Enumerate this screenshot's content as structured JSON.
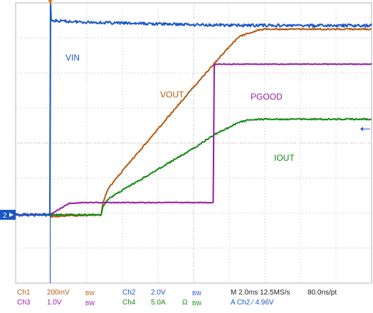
{
  "chart_data": {
    "type": "line",
    "title": "",
    "xlabel": "",
    "ylabel": "",
    "grid": true,
    "x_divisions": 10,
    "y_divisions": 8,
    "time_per_div_ms": 2.0,
    "series": [
      {
        "name": "VIN",
        "channel": "Ch2",
        "color": "#1a57c8",
        "x": [
          0,
          0.96,
          0.98,
          1.0,
          1.2,
          2.0,
          3.0,
          4.0,
          5.0,
          6.0,
          7.0,
          8.0,
          9.0,
          10.0
        ],
        "y": [
          1.95,
          1.95,
          8.0,
          7.5,
          7.48,
          7.45,
          7.42,
          7.4,
          7.38,
          7.36,
          7.36,
          7.35,
          7.35,
          7.35
        ]
      },
      {
        "name": "VOUT",
        "channel": "Ch1",
        "color": "#b45a12",
        "x": [
          0,
          0.96,
          1.0,
          2.4,
          2.45,
          2.6,
          3.0,
          4.0,
          5.0,
          6.0,
          6.3,
          6.8,
          7.0,
          8.0,
          9.0,
          10.0
        ],
        "y": [
          1.95,
          1.95,
          1.9,
          1.95,
          2.3,
          2.7,
          3.2,
          4.4,
          5.6,
          6.75,
          7.05,
          7.22,
          7.25,
          7.25,
          7.25,
          7.25
        ]
      },
      {
        "name": "PGOOD",
        "channel": "Ch3",
        "color": "#9a1aa0",
        "x": [
          0,
          0.96,
          1.0,
          1.3,
          1.5,
          2.0,
          3.0,
          4.0,
          5.0,
          5.55,
          5.58,
          5.6,
          6.0,
          7.0,
          8.0,
          9.0,
          10.0
        ],
        "y": [
          1.95,
          1.95,
          1.98,
          2.15,
          2.28,
          2.3,
          2.3,
          2.3,
          2.3,
          2.3,
          6.2,
          6.25,
          6.25,
          6.25,
          6.25,
          6.25,
          6.25
        ]
      },
      {
        "name": "IOUT",
        "channel": "Ch4",
        "color": "#148a14",
        "x": [
          0,
          2.4,
          2.45,
          2.6,
          3.0,
          4.0,
          5.0,
          5.6,
          6.0,
          6.3,
          6.6,
          7.0,
          8.0,
          9.0,
          10.0
        ],
        "y": [
          1.95,
          1.95,
          2.2,
          2.4,
          2.65,
          3.25,
          3.85,
          4.25,
          4.45,
          4.6,
          4.67,
          4.68,
          4.68,
          4.68,
          4.68
        ]
      }
    ],
    "labels": {
      "vin": "VIN",
      "vout": "VOUT",
      "pgood": "PGOOD",
      "iout": "IOUT"
    },
    "ground_marker": "2"
  },
  "status_bar": {
    "ch1": "Ch1",
    "ch1_scale": "200mV",
    "ch1_bw": "BW",
    "ch2": "Ch2",
    "ch2_scale": "2.0V",
    "ch2_bw": "BW",
    "ch3": "Ch3",
    "ch3_scale": "1.0V",
    "ch3_bw": "BW",
    "ch4": "Ch4",
    "ch4_scale": "5.0A",
    "ch4_unit": "Ω",
    "ch4_bw": "BW",
    "timebase": "M 2.0ms 12.5MS/s",
    "resolution": "80.0ns/pt",
    "trigger": "A Ch2 ⁄ 4.96V"
  }
}
